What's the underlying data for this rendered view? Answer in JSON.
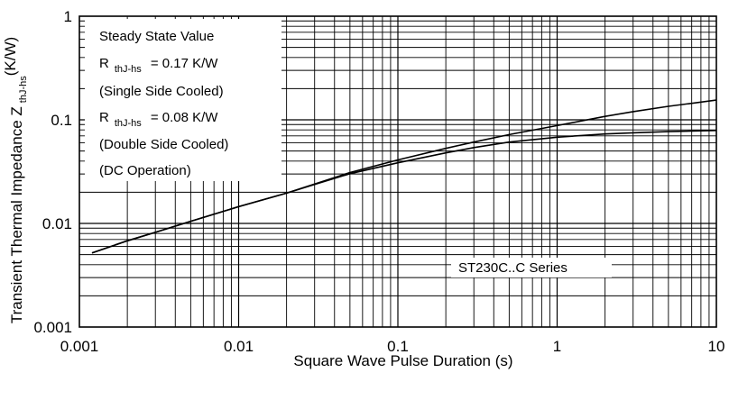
{
  "chart_data": {
    "type": "line",
    "xscale": "log",
    "yscale": "log",
    "xlim": [
      0.001,
      10
    ],
    "ylim": [
      0.001,
      1
    ],
    "grid": true,
    "xlabel": "Square Wave Pulse Duration (s)",
    "ylabel_main": "Transient Thermal Impedance Z",
    "ylabel_sub": "thJ-hs",
    "ylabel_unit": "(K/W)",
    "xticks": [
      {
        "value": 0.001,
        "label": "0.001"
      },
      {
        "value": 0.01,
        "label": "0.01"
      },
      {
        "value": 0.1,
        "label": "0.1"
      },
      {
        "value": 1,
        "label": "1"
      },
      {
        "value": 10,
        "label": "10"
      }
    ],
    "yticks": [
      {
        "value": 0.001,
        "label": "0.001"
      },
      {
        "value": 0.01,
        "label": "0.01"
      },
      {
        "value": 0.1,
        "label": "0.1"
      },
      {
        "value": 1,
        "label": "1"
      }
    ],
    "annotations": {
      "line1": "Steady State Value",
      "r_symbol": "R",
      "r_sub": "thJ-hs",
      "line2_value": "= 0.17 K/W",
      "line3": "(Single Side Cooled)",
      "line4_value": "= 0.08 K/W",
      "line5": "(Double Side Cooled)",
      "line6": "(DC Operation)",
      "series_label": "ST230C..C Series"
    },
    "series": [
      {
        "x": [
          0.0012,
          0.002,
          0.003,
          0.005,
          0.01,
          0.02,
          0.03,
          0.05,
          0.1,
          0.2,
          0.3,
          0.5,
          1,
          2,
          3,
          5,
          10
        ],
        "y": [
          0.0052,
          0.0068,
          0.0082,
          0.0105,
          0.0145,
          0.0196,
          0.024,
          0.031,
          0.041,
          0.053,
          0.061,
          0.072,
          0.088,
          0.108,
          0.12,
          0.135,
          0.155
        ]
      },
      {
        "x": [
          0.0012,
          0.002,
          0.003,
          0.005,
          0.01,
          0.02,
          0.03,
          0.05,
          0.1,
          0.2,
          0.3,
          0.5,
          1,
          2,
          3,
          5,
          10
        ],
        "y": [
          0.0052,
          0.0068,
          0.0082,
          0.0105,
          0.0145,
          0.0196,
          0.0238,
          0.0302,
          0.0385,
          0.048,
          0.054,
          0.061,
          0.068,
          0.073,
          0.075,
          0.077,
          0.079
        ]
      }
    ]
  }
}
